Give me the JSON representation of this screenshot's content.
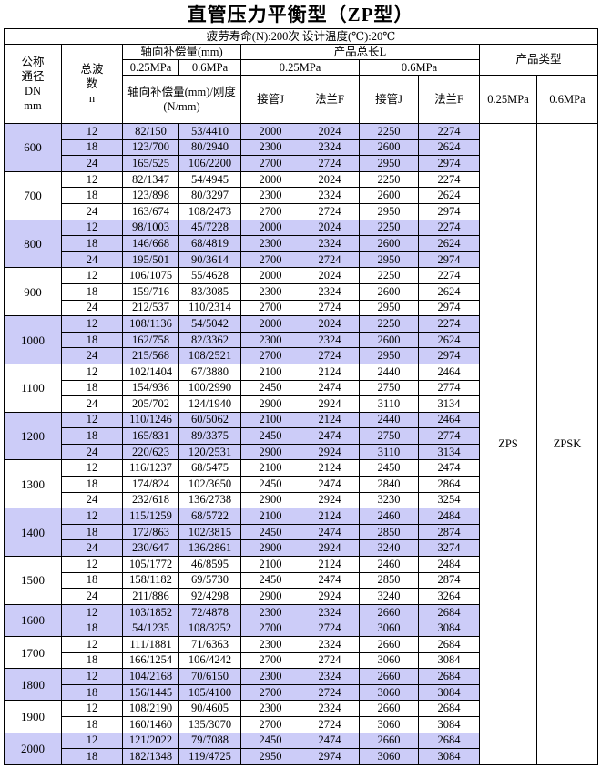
{
  "title": "直管压力平衡型（ZP型）",
  "header": {
    "conditions": "疲劳寿命(N):200次   设计温度(℃):20℃",
    "dn": [
      "公称",
      "通径",
      "DN",
      "mm"
    ],
    "n": [
      "总波",
      "数",
      "n"
    ],
    "axial": "轴向补偿量(mm)",
    "length": "产品总长L",
    "product_type": "产品类型",
    "axial_pressures": [
      "0.25MPa",
      "0.6MPa"
    ],
    "length_pressures": [
      "0.25MPa",
      "0.6MPa"
    ],
    "axial_stiffness": "轴向补偿量(mm)/刚度(N/mm)",
    "length_columns": [
      "接管J",
      "法兰F",
      "接管J",
      "法兰F"
    ],
    "type_pressures": [
      "0.25MPa",
      "0.6MPa"
    ]
  },
  "product_types": [
    "ZPS",
    "ZPSK"
  ],
  "groups": [
    {
      "dn": "600",
      "rows": [
        [
          "12",
          "82/150",
          "53/4410",
          "2000",
          "2024",
          "2250",
          "2274"
        ],
        [
          "18",
          "123/700",
          "80/2940",
          "2300",
          "2324",
          "2600",
          "2624"
        ],
        [
          "24",
          "165/525",
          "106/2200",
          "2700",
          "2724",
          "2950",
          "2974"
        ]
      ]
    },
    {
      "dn": "700",
      "rows": [
        [
          "12",
          "82/1347",
          "54/4945",
          "2000",
          "2024",
          "2250",
          "2274"
        ],
        [
          "18",
          "123/898",
          "80/3297",
          "2300",
          "2324",
          "2600",
          "2624"
        ],
        [
          "24",
          "163/674",
          "108/2473",
          "2700",
          "2724",
          "2950",
          "2974"
        ]
      ]
    },
    {
      "dn": "800",
      "rows": [
        [
          "12",
          "98/1003",
          "45/7228",
          "2000",
          "2024",
          "2250",
          "2274"
        ],
        [
          "18",
          "146/668",
          "68/4819",
          "2300",
          "2324",
          "2600",
          "2624"
        ],
        [
          "24",
          "195/501",
          "90/3614",
          "2700",
          "2724",
          "2950",
          "2974"
        ]
      ]
    },
    {
      "dn": "900",
      "rows": [
        [
          "12",
          "106/1075",
          "55/4628",
          "2000",
          "2024",
          "2250",
          "2274"
        ],
        [
          "18",
          "159/716",
          "83/3085",
          "2300",
          "2324",
          "2600",
          "2624"
        ],
        [
          "24",
          "212/537",
          "110/2314",
          "2700",
          "2724",
          "2950",
          "2974"
        ]
      ]
    },
    {
      "dn": "1000",
      "rows": [
        [
          "12",
          "108/1136",
          "54/5042",
          "2000",
          "2024",
          "2250",
          "2274"
        ],
        [
          "18",
          "162/758",
          "82/3362",
          "2300",
          "2324",
          "2600",
          "2624"
        ],
        [
          "24",
          "215/568",
          "108/2521",
          "2700",
          "2724",
          "2950",
          "2974"
        ]
      ]
    },
    {
      "dn": "1100",
      "rows": [
        [
          "12",
          "102/1404",
          "67/3880",
          "2100",
          "2124",
          "2440",
          "2464"
        ],
        [
          "18",
          "154/936",
          "100/2990",
          "2450",
          "2474",
          "2750",
          "2774"
        ],
        [
          "24",
          "205/702",
          "124/1940",
          "2900",
          "2924",
          "3110",
          "3134"
        ]
      ]
    },
    {
      "dn": "1200",
      "rows": [
        [
          "12",
          "110/1246",
          "60/5062",
          "2100",
          "2124",
          "2440",
          "2464"
        ],
        [
          "18",
          "165/831",
          "89/3375",
          "2450",
          "2474",
          "2750",
          "2774"
        ],
        [
          "24",
          "220/623",
          "120/2531",
          "2900",
          "2924",
          "3110",
          "3134"
        ]
      ]
    },
    {
      "dn": "1300",
      "rows": [
        [
          "12",
          "116/1237",
          "68/5475",
          "2100",
          "2124",
          "2450",
          "2474"
        ],
        [
          "18",
          "174/824",
          "102/3650",
          "2450",
          "2474",
          "2840",
          "2864"
        ],
        [
          "24",
          "232/618",
          "136/2738",
          "2900",
          "2924",
          "3230",
          "3254"
        ]
      ]
    },
    {
      "dn": "1400",
      "rows": [
        [
          "12",
          "115/1259",
          "68/5722",
          "2100",
          "2124",
          "2460",
          "2484"
        ],
        [
          "18",
          "172/863",
          "102/3815",
          "2450",
          "2474",
          "2850",
          "2874"
        ],
        [
          "24",
          "230/647",
          "136/2861",
          "2900",
          "2924",
          "3240",
          "3274"
        ]
      ]
    },
    {
      "dn": "1500",
      "rows": [
        [
          "12",
          "105/1772",
          "46/8595",
          "2100",
          "2124",
          "2460",
          "2484"
        ],
        [
          "18",
          "158/1182",
          "69/5730",
          "2450",
          "2474",
          "2850",
          "2874"
        ],
        [
          "24",
          "211/886",
          "92/4298",
          "2900",
          "2924",
          "3240",
          "3264"
        ]
      ]
    },
    {
      "dn": "1600",
      "rows": [
        [
          "12",
          "103/1852",
          "72/4878",
          "2300",
          "2324",
          "2660",
          "2684"
        ],
        [
          "18",
          "54/1235",
          "108/3252",
          "2700",
          "2724",
          "3060",
          "3084"
        ]
      ]
    },
    {
      "dn": "1700",
      "rows": [
        [
          "12",
          "111/1881",
          "71/6363",
          "2300",
          "2324",
          "2660",
          "2684"
        ],
        [
          "18",
          "166/1254",
          "106/4242",
          "2700",
          "2724",
          "3060",
          "3084"
        ]
      ]
    },
    {
      "dn": "1800",
      "rows": [
        [
          "12",
          "104/2168",
          "70/6150",
          "2300",
          "2324",
          "2660",
          "2684"
        ],
        [
          "18",
          "156/1445",
          "105/4100",
          "2700",
          "2724",
          "3060",
          "3084"
        ]
      ]
    },
    {
      "dn": "1900",
      "rows": [
        [
          "12",
          "108/2190",
          "90/4605",
          "2300",
          "2324",
          "2660",
          "2684"
        ],
        [
          "18",
          "160/1460",
          "135/3070",
          "2700",
          "2724",
          "3060",
          "3084"
        ]
      ]
    },
    {
      "dn": "2000",
      "rows": [
        [
          "12",
          "121/2022",
          "79/7088",
          "2450",
          "2474",
          "2660",
          "2684"
        ],
        [
          "18",
          "182/1348",
          "119/4725",
          "2950",
          "2974",
          "3060",
          "3084"
        ]
      ]
    }
  ]
}
